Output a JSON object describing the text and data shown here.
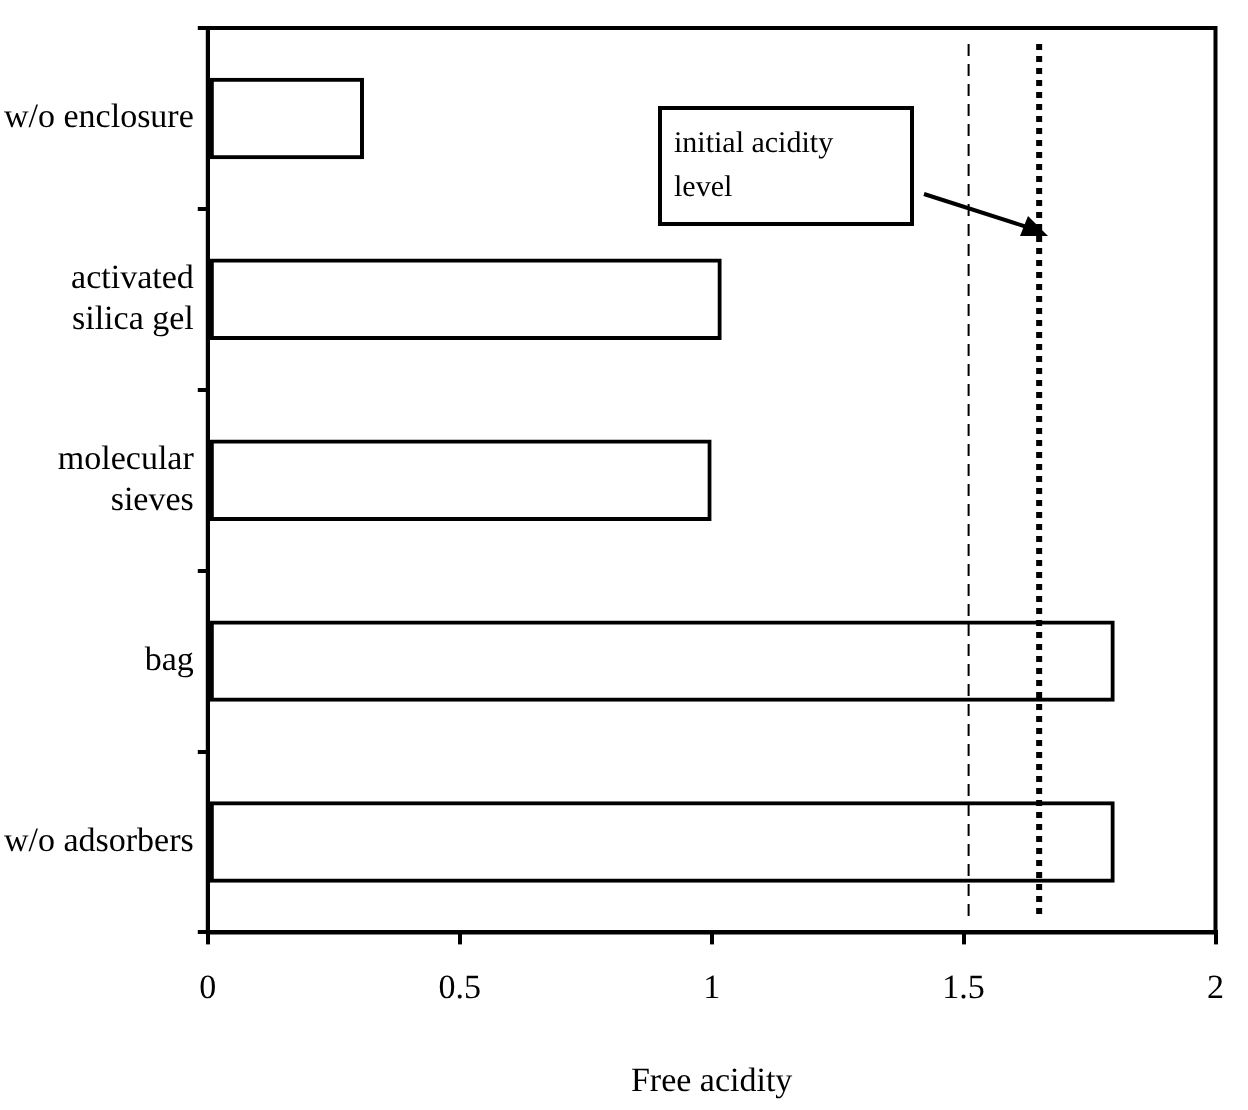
{
  "chart_data": {
    "type": "bar",
    "orientation": "horizontal",
    "categories": [
      "w/o enclosure",
      "activated silica gel",
      "molecular sieves",
      "bag",
      "w/o adsorbers"
    ],
    "values": [
      0.31,
      1.02,
      1.0,
      1.8,
      1.8
    ],
    "color": "#000000",
    "xlabel": "Free acidity",
    "xlim": [
      0,
      2
    ],
    "xticks": [
      0,
      0.5,
      1,
      1.5,
      2
    ],
    "grid": false,
    "legend": false,
    "ref_lines": [
      {
        "axis": "x",
        "value": 1.51,
        "color": "#000000",
        "line_style": "dashed"
      },
      {
        "axis": "x",
        "value": 1.65,
        "color": "#000000",
        "line_style": "dotted"
      }
    ],
    "annotations": [
      "initial acidity level"
    ]
  }
}
